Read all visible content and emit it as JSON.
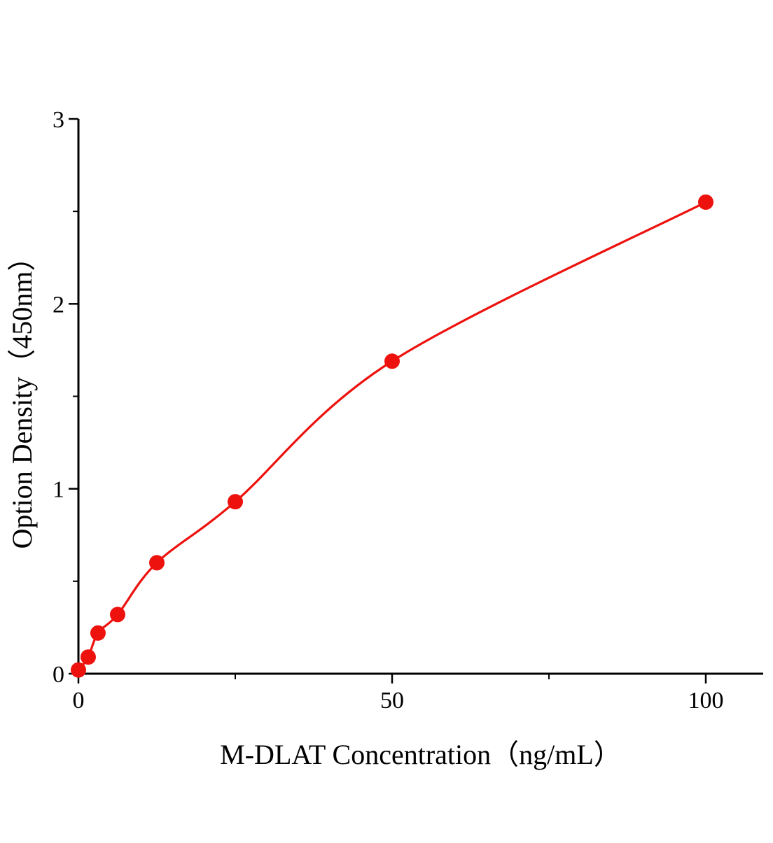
{
  "chart_data": {
    "type": "scatter",
    "title": "",
    "xlabel": "M-DLAT Concentration（ng/mL）",
    "ylabel": "Option Density（450nm）",
    "x": [
      0,
      1.56,
      3.12,
      6.25,
      12.5,
      25,
      50,
      100
    ],
    "y": [
      0.02,
      0.09,
      0.22,
      0.32,
      0.6,
      0.93,
      1.69,
      2.55
    ],
    "xlim": [
      0,
      109
    ],
    "ylim": [
      0,
      3
    ],
    "xticks": [
      0,
      50,
      100
    ],
    "xticks_minor": [
      25,
      75
    ],
    "yticks": [
      0,
      1,
      2,
      3
    ],
    "yticks_minor": [
      0.5,
      1.5,
      2.5
    ],
    "grid": "off",
    "legend_position": "none",
    "curve_style": "smooth fitted curve through points",
    "marker_color": "#ed120e",
    "line_color": "#ed120e",
    "axis_color": "#000000",
    "background_color": "#ffffff"
  }
}
